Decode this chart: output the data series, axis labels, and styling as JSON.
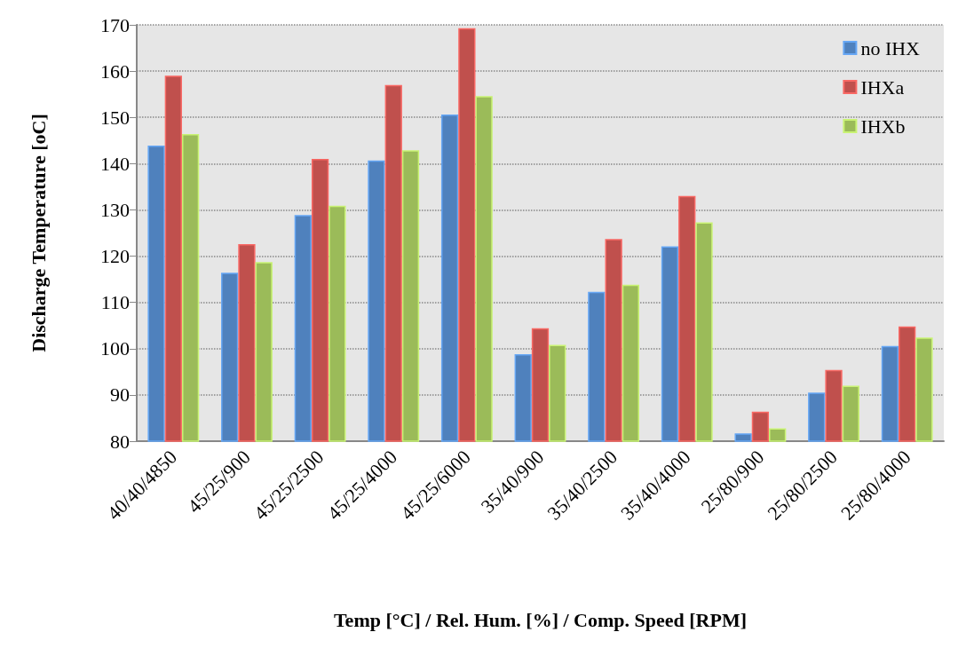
{
  "chart_data": {
    "type": "bar",
    "xlabel": "Temp [°C] / Rel. Hum. [%] / Comp. Speed [RPM]",
    "ylabel": "Discharge Temperature [oC]",
    "categories": [
      "40/40/4850",
      "45/25/900",
      "45/25/2500",
      "45/25/4000",
      "45/25/6000",
      "35/40/900",
      "35/40/2500",
      "35/40/4000",
      "25/80/900",
      "25/80/2500",
      "25/80/4000"
    ],
    "series": [
      {
        "name": "no IHX",
        "color": "#4f81bd",
        "values": [
          143.9,
          116.4,
          128.9,
          140.7,
          150.6,
          98.8,
          112.3,
          122.1,
          81.7,
          90.5,
          100.6
        ]
      },
      {
        "name": "IHXa",
        "color": "#c0504d",
        "values": [
          159,
          122.6,
          141,
          157,
          169.3,
          104.4,
          123.7,
          133,
          86.4,
          95.4,
          104.8
        ]
      },
      {
        "name": "IHXb",
        "color": "#9bbb59",
        "values": [
          146.4,
          118.7,
          130.9,
          142.9,
          154.6,
          100.8,
          113.8,
          127.3,
          82.8,
          92,
          102.4
        ]
      }
    ],
    "ylim": [
      80,
      170
    ],
    "yticks": [
      80,
      90,
      100,
      110,
      120,
      130,
      140,
      150,
      160,
      170
    ],
    "grid": "y",
    "legend": "top right"
  }
}
